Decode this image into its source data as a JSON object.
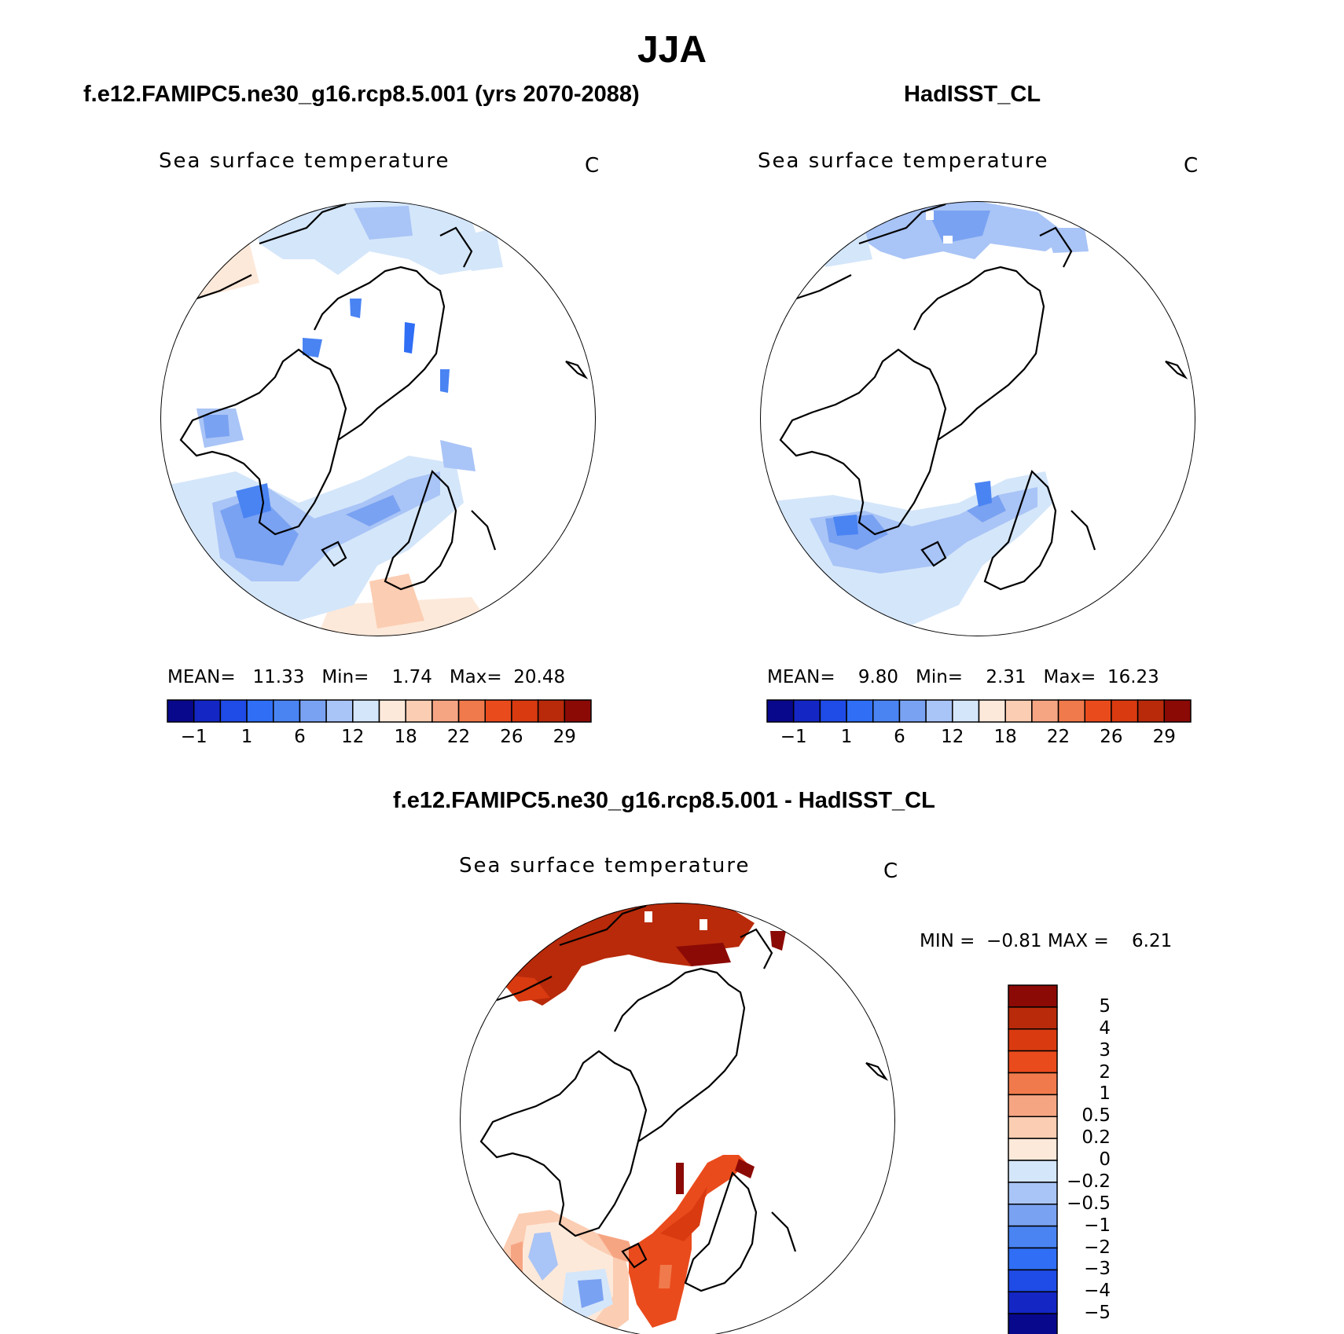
{
  "title": "JJA",
  "colors": {
    "sst_levels": [
      "#08088c",
      "#1426c4",
      "#1f4be6",
      "#2f6ef5",
      "#4a84f3",
      "#7aa2f2",
      "#a9c4f6",
      "#d4e6fa",
      "#fde9da",
      "#fbcdb2",
      "#f6a583",
      "#f07a4c",
      "#ea4b1c",
      "#d93a10",
      "#b82a0a",
      "#8b0a06"
    ],
    "diff_levels": [
      "#08088c",
      "#1426c4",
      "#1f4be6",
      "#2f6ef5",
      "#4a84f3",
      "#7aa2f2",
      "#a9c4f6",
      "#d4e6fa",
      "#fde9da",
      "#fbcdb2",
      "#f6a583",
      "#f07a4c",
      "#ea4b1c",
      "#d93a10",
      "#b82a0a",
      "#8b0a06"
    ]
  },
  "panels": [
    {
      "title": "f.e12.FAMIPC5.ne30_g16.rcp8.5.001 (yrs 2070-2088)",
      "variable": "Sea surface temperature",
      "units": "C",
      "mean_label": "MEAN=",
      "mean": "11.33",
      "min_label": "Min=",
      "min": "1.74",
      "max_label": "Max=",
      "max": "20.48",
      "colorbar_labels": [
        "−1",
        "1",
        "6",
        "12",
        "18",
        "22",
        "26",
        "29"
      ]
    },
    {
      "title": "HadISST_CL",
      "variable": "Sea surface temperature",
      "units": "C",
      "mean_label": "MEAN=",
      "mean": "9.80",
      "min_label": "Min=",
      "min": "2.31",
      "max_label": "Max=",
      "max": "16.23",
      "colorbar_labels": [
        "−1",
        "1",
        "6",
        "12",
        "18",
        "22",
        "26",
        "29"
      ]
    }
  ],
  "difference": {
    "title": "f.e12.FAMIPC5.ne30_g16.rcp8.5.001 - HadISST_CL",
    "variable": "Sea surface temperature",
    "units": "C",
    "min_label": "MIN =",
    "min": "−0.81",
    "max_label": "MAX =",
    "max": "6.21",
    "colorbar_labels": [
      "5",
      "4",
      "3",
      "2",
      "1",
      "0.5",
      "0.2",
      "0",
      "−0.2",
      "−0.5",
      "−1",
      "−2",
      "−3",
      "−4",
      "−5"
    ]
  }
}
